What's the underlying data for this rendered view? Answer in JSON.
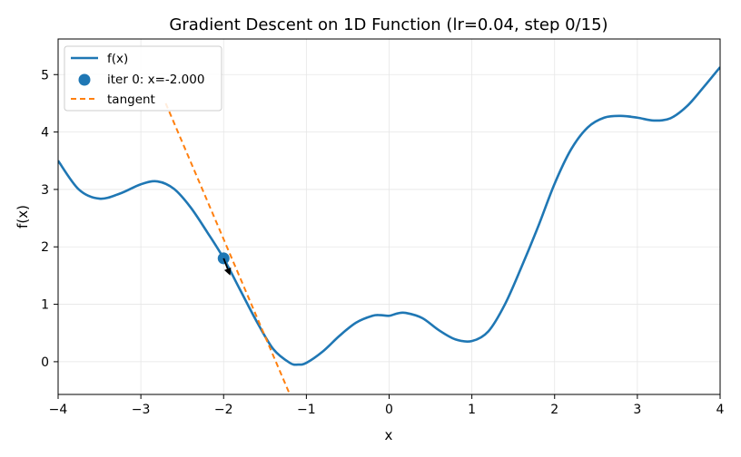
{
  "chart_data": {
    "type": "line",
    "title": "Gradient Descent on 1D Function (lr=0.04, step 0/15)",
    "xlabel": "x",
    "ylabel": "f(x)",
    "xlim": [
      -4,
      4
    ],
    "ylim": [
      -0.57,
      5.62
    ],
    "xticks": [
      -4,
      -3,
      -2,
      -1,
      0,
      1,
      2,
      3,
      4
    ],
    "yticks": [
      0,
      1,
      2,
      3,
      4,
      5
    ],
    "grid": true,
    "legend_position": "top-left",
    "series": [
      {
        "name": "f(x)",
        "kind": "line",
        "color": "#1f77b4",
        "x": [
          -4.0,
          -3.75,
          -3.5,
          -3.25,
          -3.0,
          -2.8,
          -2.6,
          -2.4,
          -2.2,
          -2.0,
          -1.8,
          -1.6,
          -1.4,
          -1.2,
          -1.1,
          -1.0,
          -0.8,
          -0.6,
          -0.4,
          -0.2,
          -0.1,
          0.0,
          0.1,
          0.2,
          0.4,
          0.6,
          0.8,
          1.0,
          1.2,
          1.4,
          1.6,
          1.8,
          2.0,
          2.2,
          2.4,
          2.6,
          2.8,
          3.0,
          3.2,
          3.4,
          3.6,
          3.8,
          4.0
        ],
        "y": [
          3.5,
          3.0,
          2.84,
          2.93,
          3.09,
          3.14,
          3.01,
          2.69,
          2.26,
          1.8,
          1.25,
          0.7,
          0.22,
          -0.02,
          -0.05,
          -0.02,
          0.18,
          0.45,
          0.68,
          0.8,
          0.81,
          0.8,
          0.84,
          0.85,
          0.76,
          0.55,
          0.39,
          0.36,
          0.53,
          1.0,
          1.65,
          2.35,
          3.1,
          3.7,
          4.08,
          4.25,
          4.28,
          4.25,
          4.2,
          4.24,
          4.45,
          4.78,
          5.13
        ]
      },
      {
        "name": "tangent",
        "kind": "dashed-line",
        "color": "#ff7f0e",
        "x": [
          -2.7,
          -1.2
        ],
        "y": [
          4.5,
          -0.57
        ]
      },
      {
        "name": "iter 0: x=-2.000",
        "kind": "scatter",
        "color": "#1f77b4",
        "points": [
          {
            "x": -2.0,
            "y": 1.8
          }
        ]
      }
    ],
    "annotations": [
      {
        "kind": "arrow",
        "from": [
          -2.0,
          1.8
        ],
        "to": [
          -1.92,
          1.5
        ],
        "color": "#000000"
      }
    ]
  }
}
